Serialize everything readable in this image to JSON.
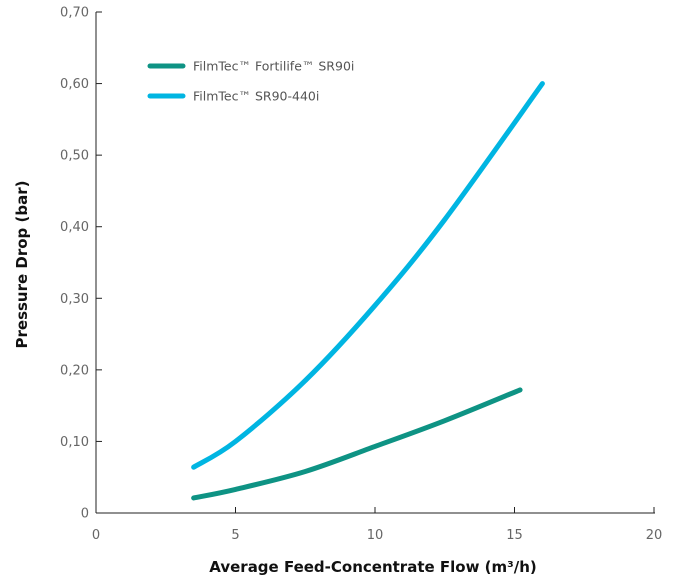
{
  "chart_data": {
    "type": "line",
    "title": "",
    "xlabel": "Average Feed-Concentrate Flow (m³/h)",
    "ylabel": "Pressure Drop (bar)",
    "xlim": [
      0,
      20
    ],
    "ylim": [
      0,
      0.7
    ],
    "x_ticks": [
      "0",
      "5",
      "10",
      "15",
      "20"
    ],
    "y_ticks": [
      "0",
      "0,10",
      "0,20",
      "0,30",
      "0,40",
      "0,50",
      "0,60",
      "0,70"
    ],
    "grid": false,
    "legend_position": "top-left",
    "series": [
      {
        "name": "FilmTec™ Fortilife™ SR90i",
        "color": "#0e9384",
        "x": [
          3.5,
          5,
          7.5,
          10,
          12.5,
          15.2
        ],
        "y": [
          0.021,
          0.033,
          0.058,
          0.093,
          0.129,
          0.172
        ]
      },
      {
        "name": "FilmTec™ SR90-440i",
        "color": "#00b5e2",
        "x": [
          3.5,
          5,
          7.5,
          10,
          12.5,
          16
        ],
        "y": [
          0.064,
          0.1,
          0.185,
          0.29,
          0.41,
          0.6
        ]
      }
    ]
  }
}
